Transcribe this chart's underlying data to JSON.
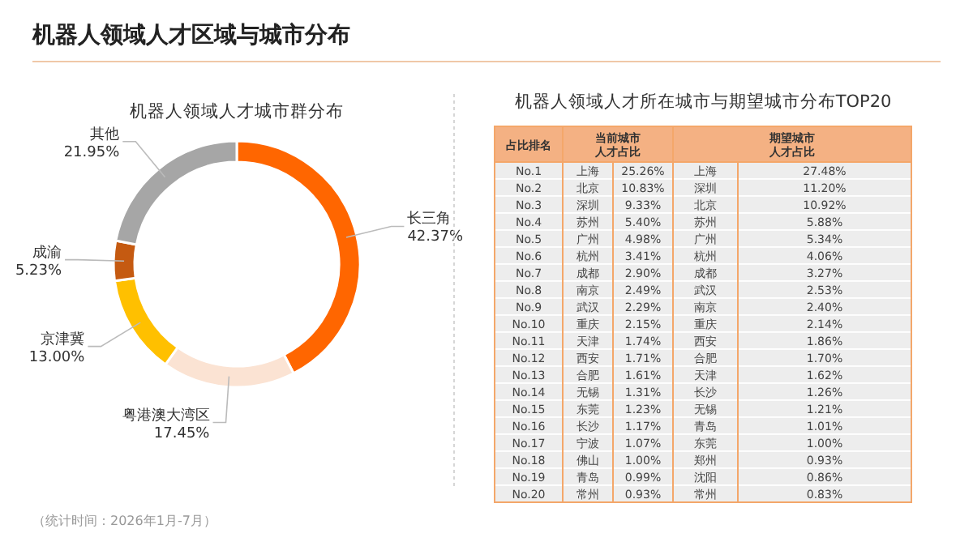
{
  "chart_data": [
    {
      "type": "donut",
      "title": "机器人领域人才区域与城市分布",
      "subtitle": "机器人领域人才城市群分布",
      "categories": [
        "长三角",
        "粤港澳大湾区",
        "京津冀",
        "成渝",
        "其他"
      ],
      "values": [
        42.37,
        17.45,
        13.0,
        5.23,
        21.95
      ],
      "value_labels": [
        "42.37%",
        "17.45%",
        "13.00%",
        "5.23%",
        "21.95%"
      ],
      "colors": [
        "#ff6600",
        "#fbe3d3",
        "#ffc000",
        "#c55a11",
        "#a6a6a6"
      ],
      "annotations": [
        "（统计时间：2026年1月-7月）"
      ]
    },
    {
      "type": "other",
      "title": "机器人领域人才所在城市与期望城市分布TOP20",
      "xlabel": "占比排名",
      "categories": [
        "No.1",
        "No.2",
        "No.3",
        "No.4",
        "No.5",
        "No.6",
        "No.7",
        "No.8",
        "No.9",
        "No.10",
        "No.11",
        "No.12",
        "No.13",
        "No.14",
        "No.15",
        "No.16",
        "No.17",
        "No.18",
        "No.19",
        "No.20"
      ],
      "series": [
        {
          "name": "当前城市人才占比",
          "values": [
            25.26,
            10.83,
            9.33,
            5.4,
            4.98,
            3.41,
            2.9,
            2.49,
            2.29,
            2.15,
            1.74,
            1.71,
            1.61,
            1.31,
            1.23,
            1.17,
            1.07,
            1.0,
            0.99,
            0.93
          ],
          "value_labels": [
            "25.26%",
            "10.83%",
            "9.33%",
            "5.40%",
            "4.98%",
            "3.41%",
            "2.90%",
            "2.49%",
            "2.29%",
            "2.15%",
            "1.74%",
            "1.71%",
            "1.61%",
            "1.31%",
            "1.23%",
            "1.17%",
            "1.07%",
            "1.00%",
            "0.99%",
            "0.93%"
          ]
        },
        {
          "name": "期望城市人才占比",
          "values": [
            27.48,
            11.2,
            10.92,
            5.88,
            5.34,
            4.06,
            3.27,
            2.53,
            2.4,
            2.14,
            1.86,
            1.7,
            1.62,
            1.26,
            1.21,
            1.01,
            1.0,
            0.93,
            0.86,
            0.83
          ],
          "value_labels": [
            "27.48%",
            "11.20%",
            "10.92%",
            "5.88%",
            "5.34%",
            "4.06%",
            "3.27%",
            "2.53%",
            "2.40%",
            "2.14%",
            "1.86%",
            "1.70%",
            "1.62%",
            "1.26%",
            "1.21%",
            "1.01%",
            "1.00%",
            "0.93%",
            "0.86%",
            "0.83%"
          ]
        }
      ],
      "annotations": [
        "上海",
        "北京",
        "深圳",
        "苏州",
        "广州",
        "杭州",
        "成都",
        "南京",
        "武汉",
        "重庆",
        "天津",
        "西安",
        "合肥",
        "无锡",
        "东莞",
        "长沙",
        "宁波",
        "佛山",
        "青岛",
        "常州",
        "上海",
        "深圳",
        "北京",
        "苏州",
        "广州",
        "杭州",
        "成都",
        "武汉",
        "南京",
        "重庆",
        "西安",
        "合肥",
        "天津",
        "长沙",
        "无锡",
        "青岛",
        "东莞",
        "郑州",
        "沈阳",
        "常州"
      ]
    }
  ]
}
